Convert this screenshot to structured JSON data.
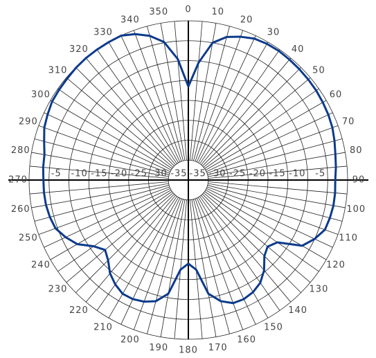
{
  "chart_data": {
    "type": "polar",
    "theta": [
      0,
      5,
      10,
      15,
      20,
      25,
      30,
      35,
      40,
      45,
      50,
      55,
      60,
      65,
      70,
      75,
      80,
      85,
      90,
      95,
      100,
      105,
      110,
      115,
      120,
      125,
      130,
      135,
      140,
      145,
      150,
      155,
      160,
      165,
      170,
      175,
      180,
      185,
      190,
      195,
      200,
      205,
      210,
      215,
      220,
      225,
      230,
      235,
      240,
      245,
      250,
      255,
      260,
      265,
      270,
      275,
      280,
      285,
      290,
      295,
      300,
      305,
      310,
      315,
      320,
      325,
      330,
      335,
      340,
      345,
      350,
      355
    ],
    "series": [
      {
        "color": "#0b3a8c",
        "values": [
          -16.5,
          -10.4,
          -5,
          -2.8,
          -1.7,
          -0.8,
          -0.5,
          -0.4,
          -0.5,
          -0.6,
          -0.7,
          -0.8,
          -1,
          -1.2,
          -1.5,
          -2,
          -2.5,
          -2.8,
          -3.1,
          -3,
          -3,
          -3.2,
          -3.5,
          -5,
          -7,
          -12.7,
          -14,
          -13,
          -10.4,
          -8.5,
          -7.5,
          -7,
          -7.1,
          -8.5,
          -11,
          -17.4,
          -19,
          -17.4,
          -11,
          -8.5,
          -7.5,
          -7,
          -7,
          -8,
          -9.4,
          -11.5,
          -12.7,
          -11,
          -7.8,
          -6,
          -4.5,
          -4,
          -3.7,
          -3.6,
          -3.6,
          -3.4,
          -3.3,
          -2.5,
          -1.5,
          -1,
          -0.5,
          -0.4,
          -0.3,
          -0.1,
          0,
          0,
          0,
          0,
          -1,
          -2.5,
          -4.8,
          -9.5
        ]
      }
    ],
    "rlim": [
      -40,
      0
    ],
    "rticks": [
      -35,
      -30,
      -25,
      -20,
      -15,
      -10,
      -5
    ],
    "thetaticks": [
      0,
      10,
      20,
      30,
      40,
      50,
      60,
      70,
      80,
      90,
      100,
      110,
      120,
      130,
      140,
      150,
      160,
      170,
      180,
      190,
      200,
      210,
      220,
      230,
      240,
      250,
      260,
      270,
      280,
      290,
      300,
      310,
      320,
      330,
      340,
      350
    ],
    "grid": true
  }
}
